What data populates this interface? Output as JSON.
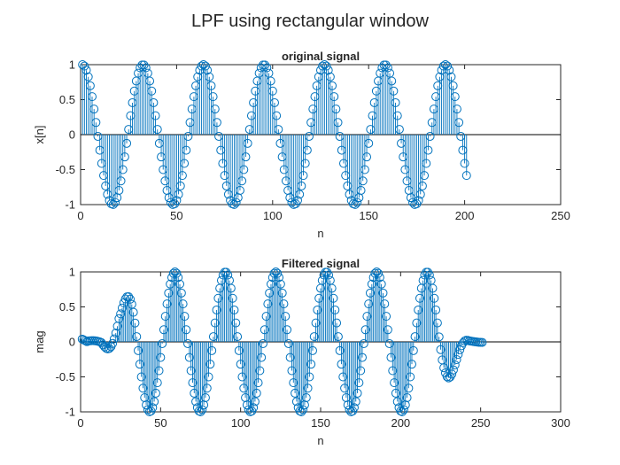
{
  "figure": {
    "title": "LPF using rectangular window"
  },
  "colors": {
    "series": "#0072bd",
    "axis": "#262626",
    "background": "#ffffff"
  },
  "chart_data": [
    {
      "type": "stem",
      "title": "original signal",
      "xlabel": "n",
      "ylabel": "x[n]",
      "xlim": [
        0,
        250
      ],
      "ylim": [
        -1,
        1
      ],
      "xticks": [
        "0",
        "50",
        "100",
        "150",
        "200",
        "250"
      ],
      "yticks": [
        "-1",
        "-0.5",
        "0",
        "0.5",
        "1"
      ],
      "series": [
        {
          "n_start": 1,
          "n_end": 201,
          "period": 31.5,
          "peak_n": 1,
          "amplitude": 1,
          "peaks_n": [
            1,
            33,
            65,
            96,
            128,
            160,
            191
          ],
          "troughs_n": [
            17,
            48,
            80,
            112,
            144,
            175
          ]
        }
      ],
      "grid": false
    },
    {
      "type": "stem",
      "title": "Filtered signal",
      "xlabel": "n",
      "ylabel": "mag",
      "xlim": [
        0,
        300
      ],
      "ylim": [
        -1,
        1
      ],
      "xticks": [
        "0",
        "50",
        "100",
        "150",
        "200",
        "250",
        "300"
      ],
      "yticks": [
        "-1",
        "-0.5",
        "0",
        "0.5",
        "1"
      ],
      "series": [
        {
          "n_start": 1,
          "n_end": 251,
          "period": 31.5,
          "peak_n": 59,
          "amplitude": 1,
          "transient_start_amplitude": 0.04,
          "peaks_n": [
            28,
            59,
            90,
            122,
            154,
            185,
            217
          ],
          "troughs_n": [
            43,
            75,
            106,
            138,
            170,
            201
          ],
          "ripple_amplitude": 0.08
        }
      ],
      "grid": false
    }
  ]
}
